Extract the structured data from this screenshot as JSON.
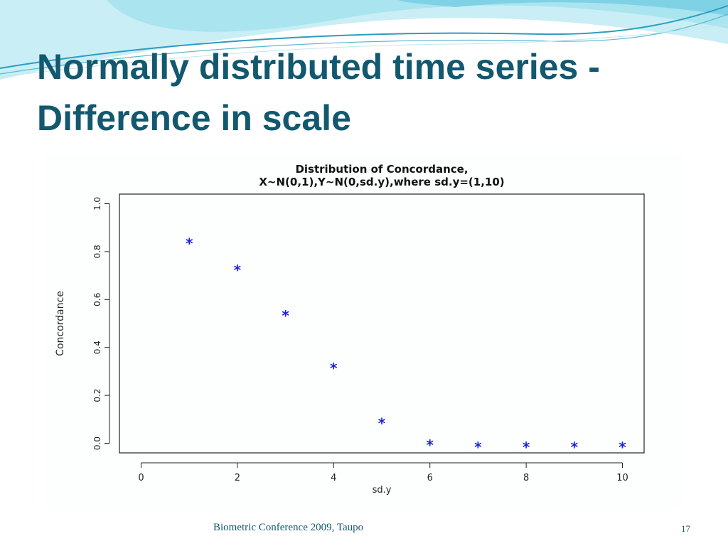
{
  "slide": {
    "title_line1": "Normally distributed time series -",
    "title_line2": "Difference in scale",
    "footer": "Biometric Conference 2009, Taupo",
    "page_number": "17",
    "colors": {
      "title": "#12586e",
      "marker": "#1f22d6",
      "wave_light": "#a9e4ef",
      "wave_dark": "#2d9cc0"
    }
  },
  "chart_data": {
    "type": "scatter",
    "title": "Distribution of Concordance,",
    "subtitle": "X~N(0,1),Y~N(0,sd.y),where sd.y=(1,10)",
    "xlabel": "sd.y",
    "ylabel": "Concordance",
    "marker": "*",
    "x": [
      1,
      2,
      3,
      4,
      5,
      6,
      7,
      8,
      9,
      10
    ],
    "y": [
      0.845,
      0.735,
      0.545,
      0.325,
      0.095,
      0.005,
      -0.005,
      -0.005,
      -0.005,
      -0.005
    ],
    "xlim": [
      -0.45,
      10.45
    ],
    "ylim": [
      -0.04,
      1.04
    ],
    "xticks": [
      0,
      2,
      4,
      6,
      8,
      10
    ],
    "yticks": [
      "0.0",
      "0.2",
      "0.4",
      "0.6",
      "0.8",
      "1.0"
    ],
    "grid": false,
    "legend": "none"
  }
}
